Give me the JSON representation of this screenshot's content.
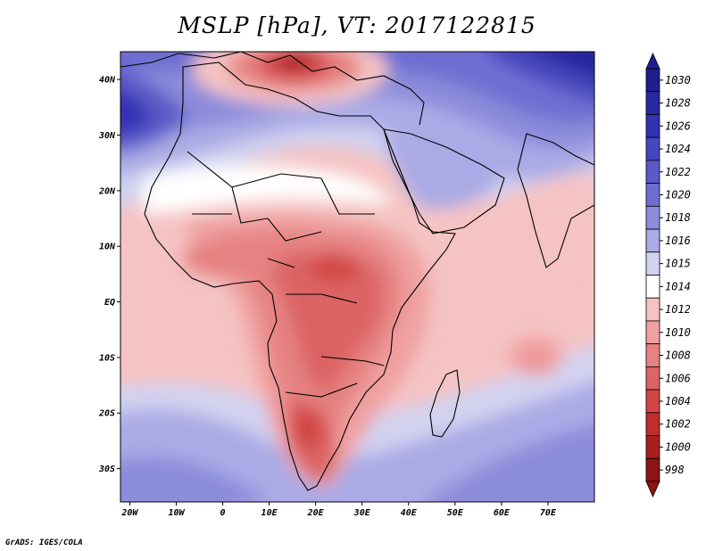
{
  "title": "MSLP [hPa], VT: 2017122815",
  "credit": "GrADS: IGES/COLA",
  "map": {
    "variable": "MSLP",
    "units": "hPa",
    "valid_time": "2017122815",
    "lon_range": [
      -22,
      80
    ],
    "lat_range": [
      -36,
      45
    ],
    "lat_ticks": [
      {
        "value": 40,
        "label": "40N"
      },
      {
        "value": 30,
        "label": "30N"
      },
      {
        "value": 20,
        "label": "20N"
      },
      {
        "value": 10,
        "label": "10N"
      },
      {
        "value": 0,
        "label": "EQ"
      },
      {
        "value": -10,
        "label": "10S"
      },
      {
        "value": -20,
        "label": "20S"
      },
      {
        "value": -30,
        "label": "30S"
      }
    ],
    "lon_ticks": [
      {
        "value": -20,
        "label": "20W"
      },
      {
        "value": -10,
        "label": "10W"
      },
      {
        "value": 0,
        "label": "0"
      },
      {
        "value": 10,
        "label": "10E"
      },
      {
        "value": 20,
        "label": "20E"
      },
      {
        "value": 30,
        "label": "30E"
      },
      {
        "value": 40,
        "label": "40E"
      },
      {
        "value": 50,
        "label": "50E"
      },
      {
        "value": 60,
        "label": "60E"
      },
      {
        "value": 70,
        "label": "70E"
      }
    ]
  },
  "colorbar": {
    "levels": [
      "1030",
      "1028",
      "1026",
      "1024",
      "1022",
      "1020",
      "1018",
      "1016",
      "1015",
      "1014",
      "1012",
      "1010",
      "1008",
      "1006",
      "1004",
      "1002",
      "1000",
      "998"
    ],
    "colors": [
      "#1e1e8c",
      "#2828a0",
      "#3232b4",
      "#4646be",
      "#5a5ac8",
      "#6e6ed2",
      "#8c8cdc",
      "#aaaae6",
      "#d2d2f0",
      "#ffffff",
      "#f5c3c3",
      "#f0a0a0",
      "#e68282",
      "#dc6464",
      "#d24646",
      "#c32d2d",
      "#aa1e1e",
      "#8c1414"
    ]
  }
}
